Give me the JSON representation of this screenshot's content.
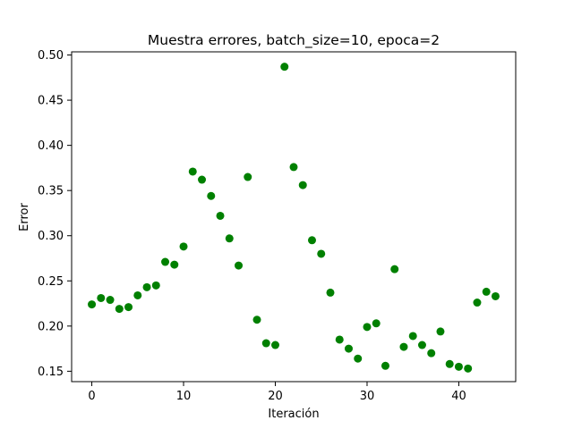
{
  "chart_data": {
    "type": "scatter",
    "title": "Muestra errores, batch_size=10, epoca=2",
    "xlabel": "Iteración",
    "ylabel": "Error",
    "xlim": [
      -2.2,
      46.2
    ],
    "ylim": [
      0.1385,
      0.5035
    ],
    "xticks": [
      0,
      10,
      20,
      30,
      40
    ],
    "yticks": [
      0.15,
      0.2,
      0.25,
      0.3,
      0.35,
      0.4,
      0.45,
      0.5
    ],
    "ytick_labels": [
      "0.15",
      "0.20",
      "0.25",
      "0.30",
      "0.35",
      "0.40",
      "0.45",
      "0.50"
    ],
    "grid": false,
    "marker_color": "#008000",
    "series": [
      {
        "x": [
          0,
          1,
          2,
          3,
          4,
          5,
          6,
          7,
          8,
          9,
          10,
          11,
          12,
          13,
          14,
          15,
          16,
          17,
          18,
          19,
          20,
          21,
          22,
          23,
          24,
          25,
          26,
          27,
          28,
          29,
          30,
          31,
          32,
          33,
          34,
          35,
          36,
          37,
          38,
          39,
          40,
          41,
          42,
          43,
          44
        ],
        "y": [
          0.224,
          0.231,
          0.229,
          0.219,
          0.221,
          0.234,
          0.243,
          0.245,
          0.271,
          0.268,
          0.288,
          0.371,
          0.362,
          0.344,
          0.322,
          0.297,
          0.267,
          0.365,
          0.207,
          0.181,
          0.179,
          0.487,
          0.376,
          0.356,
          0.295,
          0.28,
          0.237,
          0.185,
          0.175,
          0.164,
          0.199,
          0.203,
          0.156,
          0.263,
          0.177,
          0.189,
          0.179,
          0.17,
          0.194,
          0.158,
          0.155,
          0.153,
          0.226,
          0.238,
          0.233
        ]
      }
    ]
  }
}
